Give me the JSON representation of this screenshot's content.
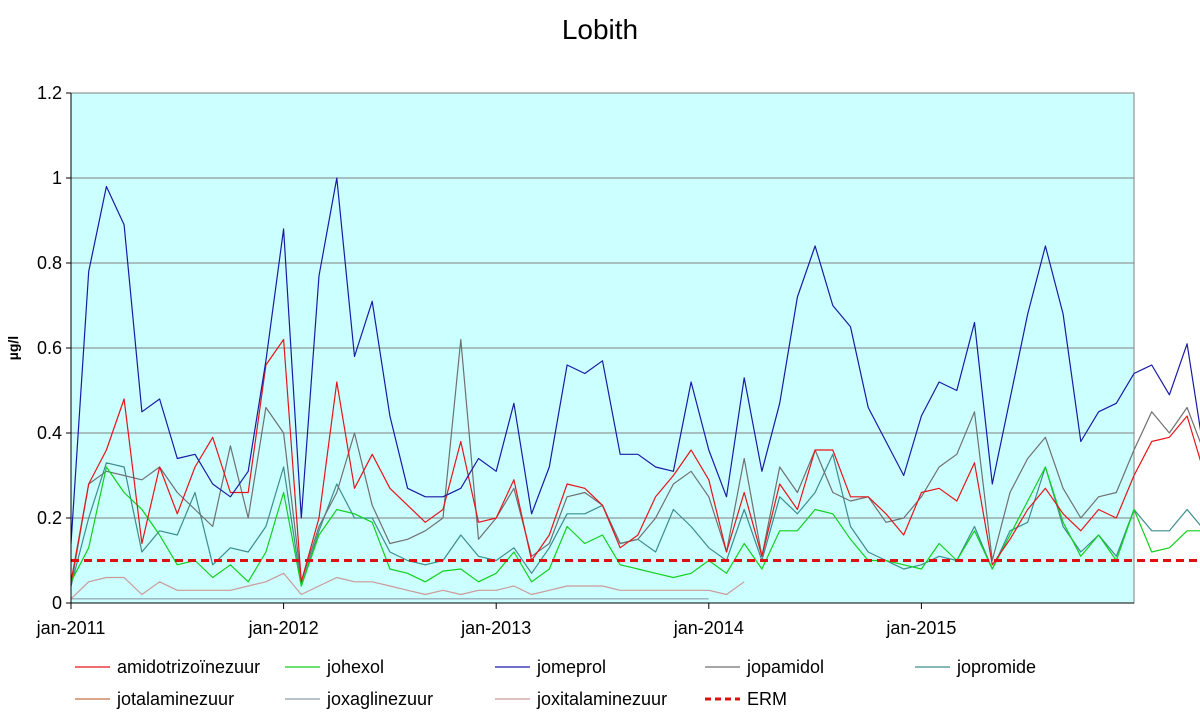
{
  "chart_data": {
    "type": "line",
    "title": "Lobith",
    "ylabel": "µg/l",
    "xlabel": "",
    "ylim": [
      0,
      1.2
    ],
    "y_ticks": [
      "0",
      "0.2",
      "0.4",
      "0.6",
      "0.8",
      "1",
      "1.2"
    ],
    "x_ticks": [
      {
        "label": "jan-2011",
        "index": 0
      },
      {
        "label": "jan-2012",
        "index": 12
      },
      {
        "label": "jan-2013",
        "index": 24
      },
      {
        "label": "jan-2014",
        "index": 36
      },
      {
        "label": "jan-2015",
        "index": 48
      }
    ],
    "x_count": 61,
    "grid": true,
    "legend_position": "bottom",
    "plot_background": "#ccffff",
    "series": [
      {
        "name": "amidotrizoïnezuur",
        "color": "#e8141b",
        "style": "solid",
        "values": [
          0.05,
          0.28,
          0.36,
          0.48,
          0.14,
          0.32,
          0.21,
          0.32,
          0.39,
          0.26,
          0.26,
          0.56,
          0.62,
          0.05,
          0.2,
          0.52,
          0.27,
          0.35,
          0.27,
          0.23,
          0.19,
          0.22,
          0.38,
          0.19,
          0.2,
          0.29,
          0.1,
          0.16,
          0.28,
          0.27,
          0.23,
          0.13,
          0.16,
          0.25,
          0.3,
          0.36,
          0.29,
          0.12,
          0.26,
          0.11,
          0.28,
          0.22,
          0.36,
          0.36,
          0.25,
          0.25,
          0.21,
          0.16,
          0.26,
          0.27,
          0.24,
          0.33,
          0.09,
          0.15,
          0.22,
          0.27,
          0.21,
          0.17,
          0.22,
          0.2,
          0.3,
          0.38,
          0.39,
          0.44,
          0.3
        ]
      },
      {
        "name": "johexol",
        "color": "#11d11c",
        "style": "solid",
        "values": [
          0.05,
          0.13,
          0.32,
          0.26,
          0.22,
          0.16,
          0.09,
          0.1,
          0.06,
          0.09,
          0.05,
          0.12,
          0.26,
          0.04,
          0.16,
          0.22,
          0.21,
          0.19,
          0.08,
          0.07,
          0.05,
          0.075,
          0.08,
          0.05,
          0.07,
          0.12,
          0.05,
          0.08,
          0.18,
          0.14,
          0.16,
          0.09,
          0.08,
          0.07,
          0.06,
          0.07,
          0.1,
          0.07,
          0.14,
          0.08,
          0.17,
          0.17,
          0.22,
          0.21,
          0.15,
          0.1,
          0.1,
          0.09,
          0.08,
          0.14,
          0.1,
          0.17,
          0.08,
          0.16,
          0.24,
          0.32,
          0.19,
          0.11,
          0.16,
          0.1,
          0.22,
          0.12,
          0.13,
          0.17,
          0.17
        ]
      },
      {
        "name": "jomeprol",
        "color": "#1a1aa6",
        "style": "solid",
        "values": [
          0.14,
          0.78,
          0.98,
          0.89,
          0.45,
          0.48,
          0.34,
          0.35,
          0.28,
          0.25,
          0.31,
          0.57,
          0.88,
          0.2,
          0.77,
          1.0,
          0.58,
          0.71,
          0.44,
          0.27,
          0.25,
          0.25,
          0.27,
          0.34,
          0.31,
          0.47,
          0.21,
          0.32,
          0.56,
          0.54,
          0.57,
          0.35,
          0.35,
          0.32,
          0.31,
          0.52,
          0.36,
          0.25,
          0.53,
          0.31,
          0.47,
          0.72,
          0.84,
          0.7,
          0.65,
          0.46,
          0.38,
          0.3,
          0.44,
          0.52,
          0.5,
          0.66,
          0.28,
          0.48,
          0.68,
          0.84,
          0.68,
          0.38,
          0.45,
          0.47,
          0.54,
          0.56,
          0.49,
          0.61,
          0.34
        ]
      },
      {
        "name": "jopamidol",
        "color": "#707070",
        "style": "solid",
        "values": [
          0.04,
          0.28,
          0.31,
          0.3,
          0.29,
          0.32,
          0.26,
          0.22,
          0.18,
          0.37,
          0.2,
          0.46,
          0.4,
          0.05,
          0.18,
          0.26,
          0.4,
          0.23,
          0.14,
          0.15,
          0.17,
          0.2,
          0.62,
          0.15,
          0.2,
          0.27,
          0.11,
          0.14,
          0.25,
          0.26,
          0.23,
          0.14,
          0.15,
          0.2,
          0.28,
          0.31,
          0.25,
          0.12,
          0.34,
          0.11,
          0.32,
          0.26,
          0.36,
          0.26,
          0.24,
          0.25,
          0.19,
          0.2,
          0.25,
          0.32,
          0.35,
          0.45,
          0.1,
          0.26,
          0.34,
          0.39,
          0.27,
          0.2,
          0.25,
          0.26,
          0.36,
          0.45,
          0.4,
          0.46,
          0.35
        ]
      },
      {
        "name": "jopromide",
        "color": "#3d8d8d",
        "style": "solid",
        "values": [
          0.04,
          0.2,
          0.33,
          0.32,
          0.12,
          0.17,
          0.16,
          0.26,
          0.09,
          0.13,
          0.12,
          0.18,
          0.32,
          0.04,
          0.17,
          0.28,
          0.2,
          0.2,
          0.12,
          0.1,
          0.09,
          0.1,
          0.16,
          0.11,
          0.1,
          0.13,
          0.07,
          0.13,
          0.21,
          0.21,
          0.23,
          0.14,
          0.15,
          0.12,
          0.22,
          0.18,
          0.13,
          0.1,
          0.22,
          0.1,
          0.25,
          0.21,
          0.26,
          0.35,
          0.18,
          0.12,
          0.1,
          0.08,
          0.09,
          0.11,
          0.1,
          0.18,
          0.08,
          0.17,
          0.19,
          0.32,
          0.18,
          0.12,
          0.16,
          0.11,
          0.22,
          0.17,
          0.17,
          0.22,
          0.17
        ]
      },
      {
        "name": "jotalaminezuur",
        "color": "#c07040",
        "style": "solid",
        "values": []
      },
      {
        "name": "joxaglinezuur",
        "color": "#8d9daa",
        "style": "solid",
        "values": [
          0.01,
          0.01,
          0.01,
          0.01,
          0.01,
          0.01,
          0.01,
          0.01,
          0.01,
          0.01,
          0.01,
          0.01,
          0.01,
          0.01,
          0.01,
          0.01,
          0.01,
          0.01,
          0.01,
          0.01,
          0.01,
          0.01,
          0.01,
          0.01,
          0.01,
          0.01,
          0.01,
          0.01,
          0.01,
          0.01,
          0.01,
          0.01,
          0.01,
          0.01,
          0.01,
          0.01,
          0.01
        ]
      },
      {
        "name": "joxitalaminezuur",
        "color": "#cc9999",
        "style": "solid",
        "values": [
          0.01,
          0.05,
          0.06,
          0.06,
          0.02,
          0.05,
          0.03,
          0.03,
          0.03,
          0.03,
          0.04,
          0.05,
          0.07,
          0.02,
          0.04,
          0.06,
          0.05,
          0.05,
          0.04,
          0.03,
          0.02,
          0.03,
          0.02,
          0.03,
          0.03,
          0.04,
          0.02,
          0.03,
          0.04,
          0.04,
          0.04,
          0.03,
          0.03,
          0.03,
          0.03,
          0.03,
          0.03,
          0.02,
          0.05
        ]
      },
      {
        "name": "ERM",
        "color": "#dd1111",
        "style": "dashed",
        "values": [
          0.1,
          0.1,
          0.1,
          0.1,
          0.1,
          0.1,
          0.1,
          0.1,
          0.1,
          0.1,
          0.1,
          0.1,
          0.1,
          0.1,
          0.1,
          0.1,
          0.1,
          0.1,
          0.1,
          0.1,
          0.1,
          0.1,
          0.1,
          0.1,
          0.1,
          0.1,
          0.1,
          0.1,
          0.1,
          0.1,
          0.1,
          0.1,
          0.1,
          0.1,
          0.1,
          0.1,
          0.1,
          0.1,
          0.1,
          0.1,
          0.1,
          0.1,
          0.1,
          0.1,
          0.1,
          0.1,
          0.1,
          0.1,
          0.1,
          0.1,
          0.1,
          0.1,
          0.1,
          0.1,
          0.1,
          0.1,
          0.1,
          0.1,
          0.1,
          0.1,
          0.1,
          0.1,
          0.1,
          0.1,
          0.1
        ]
      }
    ]
  }
}
